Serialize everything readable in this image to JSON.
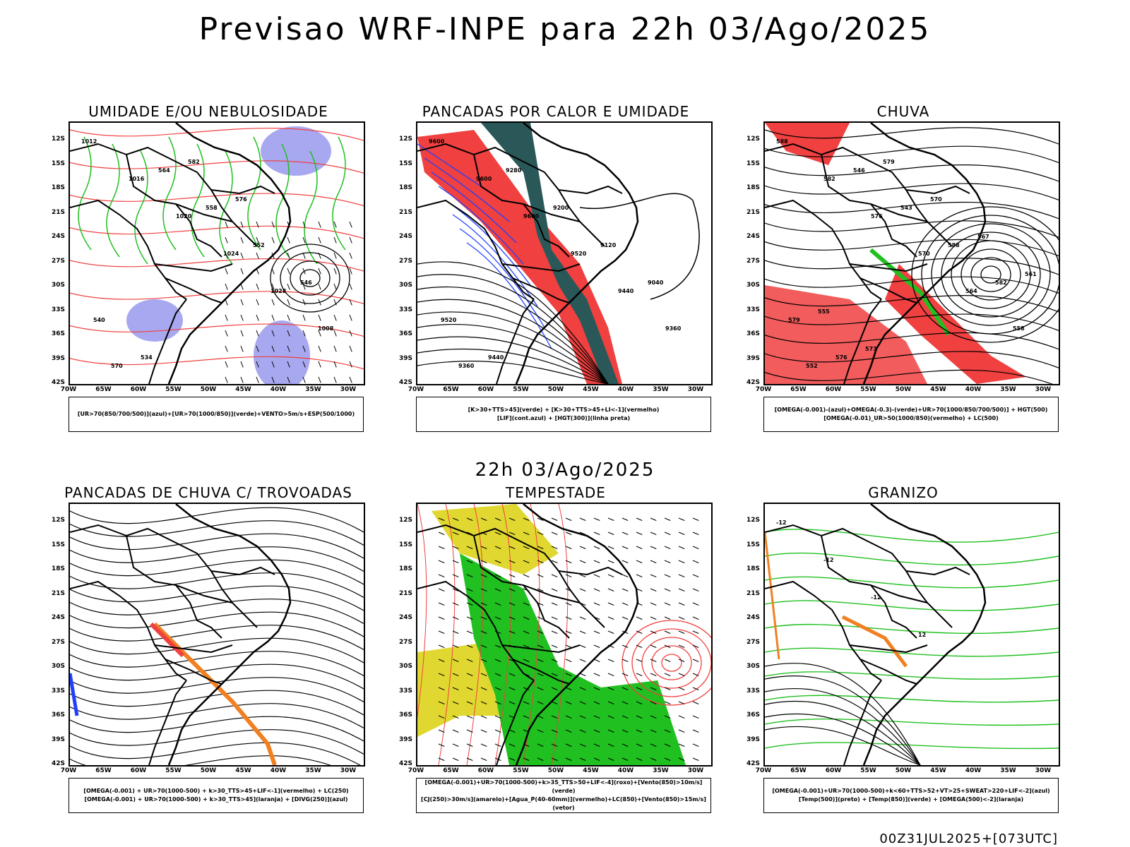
{
  "title": "Previsao WRF-INPE  para 22h 03/Ago/2025",
  "mid_date": "22h 03/Ago/2025",
  "footer": "00Z31JUL2025+[073UTC]",
  "axis": {
    "lat_labels": [
      "12S",
      "15S",
      "18S",
      "21S",
      "24S",
      "27S",
      "30S",
      "33S",
      "36S",
      "39S",
      "42S"
    ],
    "lon_labels": [
      "70W",
      "65W",
      "60W",
      "55W",
      "50W",
      "45W",
      "40W",
      "35W",
      "30W"
    ]
  },
  "colors": {
    "red": "#f04040",
    "green": "#20c020",
    "blue": "#2040ff",
    "lavender": "#a8a8f0",
    "yellow": "#e0d830",
    "dark_teal": "#2a5858",
    "orange": "#f08020"
  },
  "panels": [
    {
      "title": "UMIDADE E/OU NEBULOSIDADE",
      "legend": [
        "[UR>70(850/700/500)](azul)+[UR>70(1000/850)](verde)+VENTO>5m/s+ESP(500/1000)"
      ],
      "contour_labels": [
        "1012",
        "1016",
        "1020",
        "1024",
        "1028",
        "1008",
        "570",
        "564",
        "558",
        "552",
        "546",
        "540",
        "534",
        "582",
        "576"
      ]
    },
    {
      "title": "PANCADAS POR CALOR E UMIDADE",
      "legend": [
        "[K>30+TTS>45](verde) + [K>30+TTS>45+LI<-1](vermelho)",
        "[LIF](cont.azul) + [HGT(300)](linha preta)"
      ],
      "contour_labels": [
        "9600",
        "9600",
        "9600",
        "9520",
        "9440",
        "9360",
        "9360",
        "9280",
        "9200",
        "9120",
        "9040",
        "9520",
        "9440"
      ]
    },
    {
      "title": "CHUVA",
      "legend": [
        "[OMEGA(-0.001)-(azul)+OMEGA(-0.3)-(verde)+UR>70(1000/850/700/500)] + HGT(500)",
        "[OMEGA(-0.01)_UR>50(1000/850)(vermelho) + LC(500)"
      ],
      "contour_labels": [
        "588",
        "582",
        "576",
        "570",
        "564",
        "558",
        "552",
        "546",
        "543",
        "588",
        "582",
        "579",
        "576",
        "579",
        "570",
        "567",
        "561",
        "555",
        "573"
      ]
    },
    {
      "title": "PANCADAS DE CHUVA C/ TROVOADAS",
      "legend": [
        "[OMEGA(-0.001) + UR>70(1000-500) + k>30_TTS>45+LIF<-1](vermelho) + LC(250)",
        "[OMEGA(-0.001) + UR>70(1000-500) + k>30_TTS>45](laranja) + [DIVG(250)](azul)"
      ],
      "contour_labels": []
    },
    {
      "title": "TEMPESTADE",
      "legend": [
        "[OMEGA(-0.001)+UR>70(1000-500)+k>35_TTS>50+LIF<-4](roxo)+[Vento(850)>10m/s](verde)",
        "[CJ(250)>30m/s](amarelo)+[Agua_P(40-60mm)](vermelho)+LC(850)+[Vento(850)>15m/s](vetor)"
      ],
      "contour_labels": []
    },
    {
      "title": "GRANIZO",
      "legend": [
        "[OMEGA(-0.001)+UR>70(1000-500)+k<60+TTS>52+VT>25+SWEAT>220+LIF<-2](azul)",
        "[Temp(500)](preto) + [Temp(850)](verde) + [OMEGA(500)<-2](laranja)"
      ],
      "contour_labels": [
        "-12",
        "-12",
        "-12",
        "12"
      ]
    }
  ]
}
